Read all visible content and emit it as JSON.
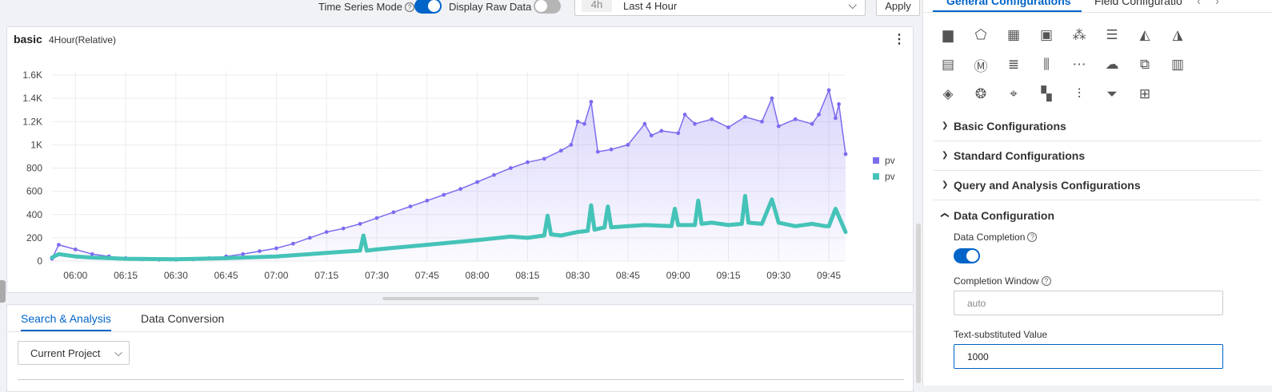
{
  "toolbar": {
    "time_series_label": "Time Series Mode",
    "time_series_on": true,
    "raw_data_label": "Display Raw Data",
    "raw_data_on": false,
    "time_short": "4h",
    "time_range": "Last 4 Hour",
    "apply_label": "Apply",
    "accent": "#0064c8",
    "off_color": "#b5b5b5"
  },
  "chart_panel": {
    "title": "basic",
    "subtitle": "4Hour(Relative)"
  },
  "chart_data": {
    "type": "line",
    "title": "basic",
    "x_ticks": [
      "06:00",
      "06:15",
      "06:30",
      "06:45",
      "07:00",
      "07:15",
      "07:30",
      "07:45",
      "08:00",
      "08:15",
      "08:30",
      "08:45",
      "09:00",
      "09:15",
      "09:30",
      "09:45"
    ],
    "y_ticks": [
      "0",
      "200",
      "400",
      "600",
      "800",
      "1K",
      "1.2K",
      "1.4K",
      "1.6K"
    ],
    "ylim": [
      0,
      1600
    ],
    "x_range": [
      "05:53",
      "09:50"
    ],
    "grid": true,
    "legend_position": "right",
    "series": [
      {
        "name": "pv",
        "color": "#7b6cf0",
        "area": true,
        "x": [
          "05:53",
          "05:55",
          "06:00",
          "06:05",
          "06:10",
          "06:15",
          "06:20",
          "06:25",
          "06:30",
          "06:35",
          "06:40",
          "06:45",
          "06:50",
          "06:55",
          "07:00",
          "07:05",
          "07:10",
          "07:15",
          "07:20",
          "07:25",
          "07:30",
          "07:35",
          "07:40",
          "07:45",
          "07:50",
          "07:55",
          "08:00",
          "08:05",
          "08:10",
          "08:15",
          "08:20",
          "08:25",
          "08:28",
          "08:30",
          "08:32",
          "08:34",
          "08:36",
          "08:40",
          "08:45",
          "08:50",
          "08:52",
          "08:55",
          "09:00",
          "09:02",
          "09:05",
          "09:10",
          "09:15",
          "09:20",
          "09:25",
          "09:28",
          "09:30",
          "09:35",
          "09:40",
          "09:42",
          "09:45",
          "09:47",
          "09:48",
          "09:50"
        ],
        "values": [
          20,
          140,
          100,
          60,
          40,
          25,
          15,
          12,
          12,
          15,
          25,
          40,
          60,
          85,
          110,
          150,
          200,
          250,
          280,
          320,
          370,
          420,
          470,
          520,
          570,
          620,
          680,
          740,
          800,
          850,
          880,
          950,
          1000,
          1200,
          1180,
          1370,
          940,
          960,
          1000,
          1180,
          1080,
          1120,
          1100,
          1260,
          1180,
          1220,
          1150,
          1240,
          1200,
          1400,
          1160,
          1220,
          1180,
          1260,
          1470,
          1230,
          1350,
          920
        ]
      },
      {
        "name": "pv",
        "color": "#45c3b8",
        "area": false,
        "x": [
          "05:53",
          "05:55",
          "06:00",
          "06:05",
          "06:15",
          "06:30",
          "06:45",
          "07:00",
          "07:15",
          "07:25",
          "07:26",
          "07:27",
          "07:30",
          "07:45",
          "08:00",
          "08:10",
          "08:15",
          "08:20",
          "08:21",
          "08:22",
          "08:25",
          "08:30",
          "08:33",
          "08:34",
          "08:35",
          "08:38",
          "08:39",
          "08:40",
          "08:45",
          "08:50",
          "08:58",
          "08:59",
          "09:00",
          "09:05",
          "09:06",
          "09:07",
          "09:10",
          "09:15",
          "09:19",
          "09:20",
          "09:21",
          "09:25",
          "09:28",
          "09:30",
          "09:35",
          "09:40",
          "09:44",
          "09:45",
          "09:47",
          "09:50"
        ],
        "values": [
          30,
          60,
          40,
          30,
          20,
          15,
          25,
          40,
          70,
          90,
          220,
          90,
          100,
          140,
          180,
          210,
          200,
          220,
          390,
          230,
          220,
          250,
          260,
          480,
          270,
          290,
          470,
          290,
          300,
          310,
          300,
          450,
          310,
          310,
          520,
          320,
          330,
          310,
          320,
          560,
          330,
          320,
          530,
          330,
          300,
          320,
          300,
          300,
          450,
          250
        ]
      }
    ]
  },
  "tabs": {
    "search": "Search & Analysis",
    "conversion": "Data Conversion",
    "project": "Current Project"
  },
  "right_panel": {
    "tab_general": "General Configurations",
    "tab_field": "Field Configuratio",
    "icons": [
      "bar-chart-icon",
      "radar-icon",
      "table-icon",
      "single-value-icon",
      "bubble-icon",
      "list-icon",
      "china-map-icon",
      "world-map-icon",
      "statistic-icon",
      "markdown-icon",
      "multi-value-icon",
      "boxplot-icon",
      "flow-icon",
      "word-cloud-icon",
      "topology-icon",
      "column-icon",
      "map-pro-icon",
      "bubble-pro-icon",
      "location-icon",
      "treemap-icon",
      "histogram-icon",
      "funnel-icon",
      "cross-table-icon"
    ],
    "sections": [
      "Basic Configurations",
      "Standard Configurations",
      "Query and Analysis Configurations",
      "Data Configuration"
    ],
    "data_completion_label": "Data Completion",
    "data_completion_on": true,
    "completion_window_label": "Completion Window",
    "completion_window_value": "auto",
    "text_substituted_label": "Text-substituted Value",
    "text_substituted_value": "1000"
  }
}
